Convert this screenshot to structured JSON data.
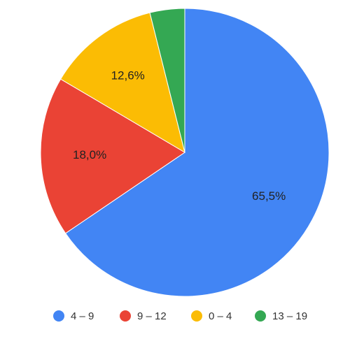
{
  "chart_data": {
    "type": "pie",
    "categories": [
      "4 – 9",
      "9 – 12",
      "0 – 4",
      "13 – 19"
    ],
    "values": [
      65.5,
      18.0,
      12.6,
      3.9
    ],
    "value_labels": [
      "65,5%",
      "18,0%",
      "12,6%",
      null
    ],
    "colors": [
      "#4285f4",
      "#ea4335",
      "#fbbc04",
      "#34a853"
    ],
    "legend": "bottom"
  }
}
